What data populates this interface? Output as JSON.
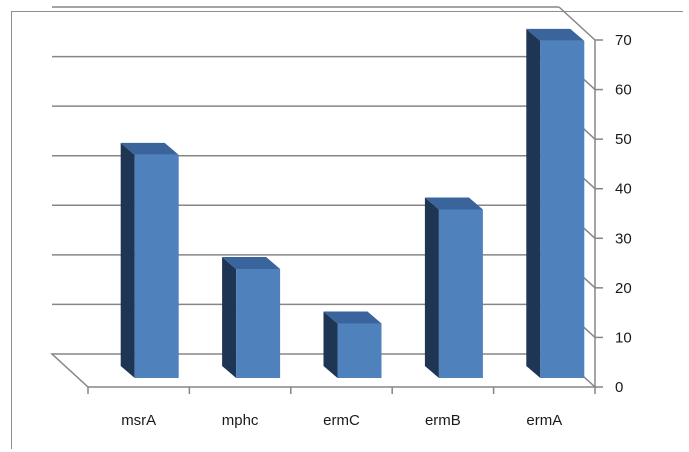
{
  "chart_data": {
    "type": "bar",
    "style": "3d-column",
    "categories": [
      "msrA",
      "mphc",
      "ermC",
      "ermB",
      "ermA"
    ],
    "values": [
      45,
      22,
      11,
      34,
      68
    ],
    "title": "",
    "xlabel": "",
    "ylabel": "",
    "ylim": [
      0,
      70
    ],
    "yticks": [
      "0",
      "10",
      "20",
      "30",
      "40",
      "50",
      "60",
      "70"
    ],
    "grid": true,
    "legend": "none",
    "y_axis_side": "right",
    "colors": {
      "bar_front": "#4f81bd",
      "bar_side": "#1f3554",
      "bar_top": "#3a659c",
      "grid": "#868686",
      "text": "#1a1a1a"
    }
  }
}
